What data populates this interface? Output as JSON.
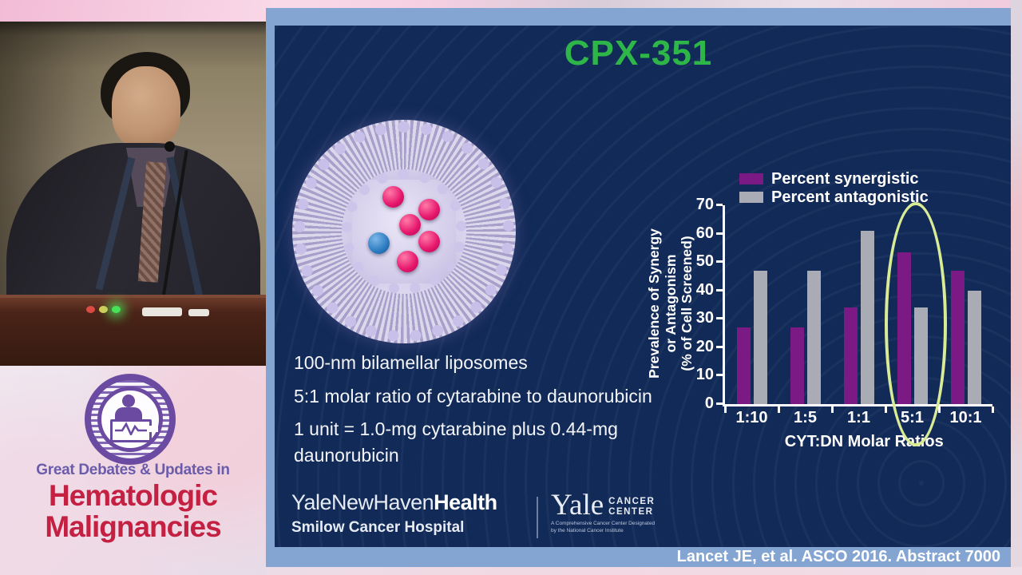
{
  "badge": {
    "line1": "Great Debates & Updates in",
    "line2": "Hematologic",
    "line3": "Malignancies",
    "purple": "#6b4aa1",
    "red": "#c42042"
  },
  "slide": {
    "title": "CPX-351",
    "title_color": "#2eb649",
    "background_color": "#122a58",
    "bar_color": "#84a5d2",
    "bullets": [
      "100-nm bilamellar liposomes",
      "5:1 molar ratio of cytarabine to daunorubicin",
      "1 unit = 1.0-mg cytarabine plus 0.44-mg daunorubicin"
    ],
    "footer": {
      "ynhh_regular": "YaleNewHaven",
      "ynhh_bold": "Health",
      "hospital": "Smilow Cancer Hospital",
      "yale_word": "Yale",
      "cancer_line1": "CANCER",
      "cancer_line2": "CENTER",
      "designation_line1": "A Comprehensive Cancer Center Designated",
      "designation_line2": "by the National Cancer Institute"
    },
    "citation": "Lancet JE, et al. ASCO 2016. Abstract 7000"
  },
  "chart_data": {
    "type": "bar",
    "categories": [
      "1:10",
      "1:5",
      "1:1",
      "5:1",
      "10:1"
    ],
    "series": [
      {
        "name": "Percent synergistic",
        "color": "#7b1a85",
        "values": [
          27,
          27,
          34,
          53.5,
          47
        ]
      },
      {
        "name": "Percent antagonistic",
        "color": "#a9abb5",
        "values": [
          47,
          47,
          61,
          34,
          40
        ]
      }
    ],
    "title": "",
    "xlabel": "CYT:DN Molar Ratios",
    "ylabel": "Prevalence of Synergy or Antagonism (% of Cell Screened)",
    "ylabel_lines": [
      "Prevalence of Synergy",
      "or Antagonism",
      "(% of Cell Screened)"
    ],
    "ylim": [
      0,
      70
    ],
    "yticks": [
      0,
      10,
      20,
      30,
      40,
      50,
      60,
      70
    ],
    "grid": false,
    "legend_position": "top-left",
    "annotation": {
      "type": "ellipse",
      "highlighted_category": "5:1",
      "color": "#d9eb94"
    }
  }
}
